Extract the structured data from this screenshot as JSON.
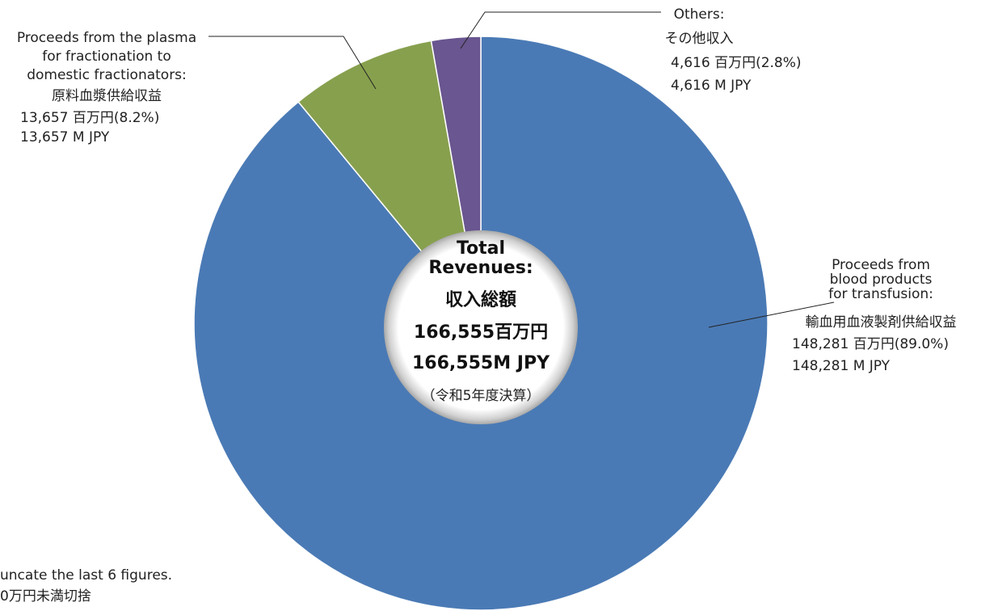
{
  "chart_data": {
    "type": "donut",
    "categories": [
      [
        "Proceeds from",
        "blood products",
        "for transfusion:",
        "輸血用血液製剤供給収益"
      ],
      [
        "Proceeds from the plasma",
        "for fractionation to",
        "domestic fractionators:",
        "原料血漿供給収益"
      ],
      [
        "Others:",
        "その他収入"
      ]
    ],
    "values": [
      148281,
      13657,
      4616
    ],
    "value_labels": [
      "148,281 百万円(89.0%)",
      "13,657 百万円(8.2%)",
      "4,616 百万円(2.8%)"
    ],
    "value_labels_en": [
      "148,281 M JPY",
      "13,657 M JPY",
      "4,616 M JPY"
    ],
    "colors": [
      "#4a7ab5",
      "#87a04e",
      "#6a5690"
    ],
    "center_text": [
      "Total",
      "Revenues:",
      "収入総額",
      "166,555百万円",
      "166,555M JPY",
      "（令和5年度決算）"
    ],
    "footnote": [
      "uncate the last 6 figures.",
      "0万円未満切捨"
    ]
  }
}
